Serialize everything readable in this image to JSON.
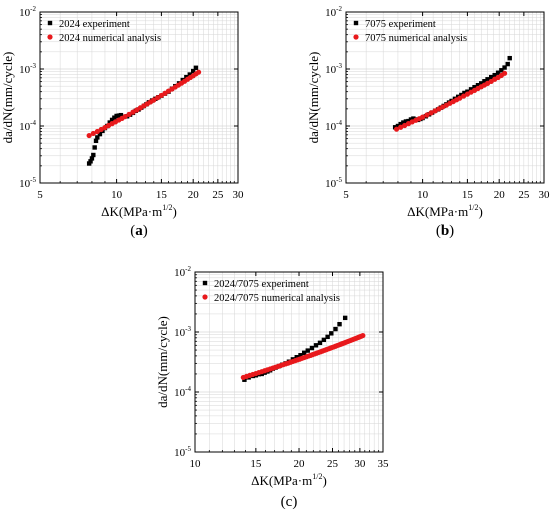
{
  "figure": {
    "panels": [
      {
        "panel_label_text": "(a)",
        "panel_label_letter": "a",
        "ylabel": "da/dN(mm/cycle)",
        "xlabel": "ΔK(MPa·m",
        "xlabel_sup": "1/2",
        "xlabel_close": ")",
        "legend": [
          "2024 experiment",
          "2024 numerical analysis"
        ]
      },
      {
        "panel_label_text": "(b)",
        "panel_label_letter": "b",
        "ylabel": "da/dN(mm/cycle)",
        "xlabel": "ΔK(MPa·m",
        "xlabel_sup": "1/2",
        "xlabel_close": ")",
        "legend": [
          "7075 experiment",
          "7075 numerical analysis"
        ]
      },
      {
        "panel_label_text": "(c)",
        "panel_label_letter": "",
        "ylabel": "da/dN(mm/cycle)",
        "xlabel": "ΔK(MPa·m",
        "xlabel_sup": "1/2",
        "xlabel_close": ")",
        "legend": [
          "2024/7075 experiment",
          "2024/7075 numerical analysis"
        ]
      }
    ]
  },
  "colors": {
    "experiment": "#000000",
    "numerical": "#e8191c",
    "grid": "#d6d6d6"
  },
  "chart_data": [
    {
      "type": "scatter",
      "xscale": "log",
      "yscale": "log",
      "xlim": [
        5,
        30
      ],
      "ylim": [
        1e-05,
        0.01
      ],
      "xticks": [
        5,
        10,
        15,
        20,
        25,
        30
      ],
      "yticks": [
        1e-05,
        0.0001,
        0.001,
        0.01
      ],
      "ytick_labels": [
        {
          "base": "10",
          "exp": "-5"
        },
        {
          "base": "10",
          "exp": "-4"
        },
        {
          "base": "10",
          "exp": "-3"
        },
        {
          "base": "10",
          "exp": "-2"
        }
      ],
      "grid": true,
      "legend_position": "top-left",
      "series": [
        {
          "name": "2024 experiment",
          "marker": "square",
          "color": "#000000",
          "x": [
            7.8,
            7.9,
            8.0,
            8.1,
            8.2,
            8.3,
            8.4,
            8.6,
            8.8,
            9.0,
            9.2,
            9.4,
            9.6,
            9.8,
            10.0,
            10.2,
            10.4,
            10.7,
            11.0,
            11.3,
            11.6,
            11.9,
            12.2,
            12.5,
            12.8,
            13.1,
            13.4,
            13.8,
            14.2,
            14.6,
            15.0,
            15.5,
            16.0,
            16.5,
            17.0,
            17.6,
            18.2,
            18.8,
            19.4,
            20.0,
            20.5
          ],
          "y": [
            2.2e-05,
            2.4e-05,
            2.7e-05,
            3.1e-05,
            4.2e-05,
            5.5e-05,
            6.3e-05,
            7.2e-05,
            8.2e-05,
            9.2e-05,
            0.0001,
            0.000115,
            0.000128,
            0.00014,
            0.00015,
            0.000152,
            0.000155,
            0.000145,
            0.000148,
            0.000158,
            0.00017,
            0.000185,
            0.000195,
            0.00021,
            0.000225,
            0.00024,
            0.00026,
            0.00028,
            0.0003,
            0.00032,
            0.00034,
            0.00037,
            0.0004,
            0.00045,
            0.0005,
            0.00056,
            0.00064,
            0.00072,
            0.0008,
            0.00092,
            0.00105
          ]
        },
        {
          "name": "2024 numerical analysis",
          "marker": "circle",
          "color": "#e8191c",
          "x": [
            7.8,
            8.1,
            8.4,
            8.7,
            9.0,
            9.3,
            9.6,
            9.9,
            10.2,
            10.5,
            10.8,
            11.2,
            11.6,
            12.0,
            12.4,
            12.8,
            13.2,
            13.6,
            14.0,
            14.5,
            15.0,
            15.5,
            16.0,
            16.5,
            17.0,
            17.5,
            18.0,
            18.5,
            19.0,
            19.5,
            20.0,
            20.5,
            21.0
          ],
          "y": [
            6.8e-05,
            7.4e-05,
            8e-05,
            8.7e-05,
            9.4e-05,
            0.000102,
            0.00011,
            0.000118,
            0.000127,
            0.000136,
            0.000146,
            0.00016,
            0.000175,
            0.000191,
            0.000208,
            0.000226,
            0.000245,
            0.000265,
            0.000286,
            0.000314,
            0.000344,
            0.000375,
            0.00041,
            0.000445,
            0.000482,
            0.000522,
            0.000565,
            0.00061,
            0.00066,
            0.00071,
            0.00076,
            0.00082,
            0.00088
          ]
        }
      ]
    },
    {
      "type": "scatter",
      "xscale": "log",
      "yscale": "log",
      "xlim": [
        5,
        30
      ],
      "ylim": [
        1e-05,
        0.01
      ],
      "xticks": [
        5,
        10,
        15,
        20,
        25,
        30
      ],
      "yticks": [
        1e-05,
        0.0001,
        0.001,
        0.01
      ],
      "ytick_labels": [
        {
          "base": "10",
          "exp": "-5"
        },
        {
          "base": "10",
          "exp": "-4"
        },
        {
          "base": "10",
          "exp": "-3"
        },
        {
          "base": "10",
          "exp": "-2"
        }
      ],
      "grid": true,
      "legend_position": "top-left",
      "series": [
        {
          "name": "7075 experiment",
          "marker": "square",
          "color": "#000000",
          "x": [
            7.8,
            8.0,
            8.2,
            8.4,
            8.6,
            8.8,
            9.0,
            9.2,
            9.4,
            9.6,
            9.8,
            10.0,
            10.3,
            10.6,
            10.9,
            11.2,
            11.5,
            11.8,
            12.1,
            12.4,
            12.7,
            13.0,
            13.4,
            13.8,
            14.2,
            14.6,
            15.0,
            15.5,
            16.0,
            16.5,
            17.0,
            17.5,
            18.0,
            18.6,
            19.2,
            19.8,
            20.4,
            21.0,
            21.6,
            22.0
          ],
          "y": [
            9.5e-05,
            0.0001,
            0.000108,
            0.000115,
            0.00012,
            0.000122,
            0.00013,
            0.000135,
            0.00013,
            0.000128,
            0.000133,
            0.000138,
            0.000148,
            0.00016,
            0.000172,
            0.000185,
            0.000195,
            0.00021,
            0.000225,
            0.00024,
            0.000258,
            0.000275,
            0.0003,
            0.000325,
            0.00035,
            0.00038,
            0.0004,
            0.00044,
            0.00048,
            0.00052,
            0.00056,
            0.00061,
            0.00066,
            0.00072,
            0.00078,
            0.00086,
            0.00095,
            0.00106,
            0.00122,
            0.00155
          ]
        },
        {
          "name": "7075 numerical analysis",
          "marker": "circle",
          "color": "#e8191c",
          "x": [
            7.9,
            8.2,
            8.5,
            8.8,
            9.1,
            9.4,
            9.7,
            10.0,
            10.4,
            10.8,
            11.2,
            11.6,
            12.0,
            12.4,
            12.8,
            13.2,
            13.6,
            14.0,
            14.5,
            15.0,
            15.5,
            16.0,
            16.5,
            17.0,
            17.5,
            18.0,
            18.6,
            19.2,
            19.8,
            20.4,
            21.0
          ],
          "y": [
            8.8e-05,
            9.5e-05,
            0.000102,
            0.00011,
            0.000118,
            0.000126,
            0.000134,
            0.000143,
            0.000156,
            0.00017,
            0.000184,
            0.0002,
            0.000216,
            0.000232,
            0.00025,
            0.000268,
            0.000288,
            0.000308,
            0.000335,
            0.000362,
            0.000392,
            0.000422,
            0.000455,
            0.000488,
            0.000522,
            0.00056,
            0.000605,
            0.00066,
            0.00071,
            0.00077,
            0.00084
          ]
        }
      ]
    },
    {
      "type": "scatter",
      "xscale": "log",
      "yscale": "log",
      "xlim": [
        10,
        35
      ],
      "ylim": [
        1e-05,
        0.01
      ],
      "xticks": [
        10,
        15,
        20,
        25,
        30,
        35
      ],
      "yticks": [
        1e-05,
        0.0001,
        0.001,
        0.01
      ],
      "ytick_labels": [
        {
          "base": "10",
          "exp": "-5"
        },
        {
          "base": "10",
          "exp": "-4"
        },
        {
          "base": "10",
          "exp": "-3"
        },
        {
          "base": "10",
          "exp": "-2"
        }
      ],
      "grid": true,
      "legend_position": "top-left",
      "series": [
        {
          "name": "2024/7075 experiment",
          "marker": "square",
          "color": "#000000",
          "x": [
            13.9,
            14.3,
            14.7,
            15.0,
            15.3,
            15.6,
            15.9,
            16.2,
            16.5,
            16.8,
            17.1,
            17.5,
            17.9,
            18.3,
            18.7,
            19.2,
            19.7,
            20.2,
            20.7,
            21.2,
            21.8,
            22.4,
            23.0,
            23.6,
            24.2,
            24.8,
            25.5,
            26.2,
            27.2
          ],
          "y": [
            0.00016,
            0.000175,
            0.000185,
            0.00019,
            0.000198,
            0.0002,
            0.00021,
            0.00022,
            0.00023,
            0.000245,
            0.000255,
            0.00027,
            0.000285,
            0.0003,
            0.00032,
            0.00035,
            0.00038,
            0.00041,
            0.00045,
            0.00049,
            0.00054,
            0.0006,
            0.00066,
            0.00074,
            0.00083,
            0.00095,
            0.00112,
            0.00135,
            0.00172
          ]
        },
        {
          "name": "2024/7075 numerical analysis",
          "marker": "circle",
          "color": "#e8191c",
          "x": [
            13.8,
            14.1,
            14.4,
            14.7,
            15.0,
            15.3,
            15.6,
            15.9,
            16.2,
            16.5,
            16.8,
            17.1,
            17.4,
            17.7,
            18.0,
            18.3,
            18.6,
            18.9,
            19.2,
            19.5,
            19.8,
            20.1,
            20.4,
            20.7,
            21.0,
            21.3,
            21.6,
            21.9,
            22.2,
            22.5,
            22.8,
            23.1,
            23.4,
            23.7,
            24.0,
            24.3,
            24.6,
            24.9,
            25.2,
            25.5,
            25.8,
            26.1,
            26.4,
            26.7,
            27.0,
            27.3,
            27.6,
            27.9,
            28.2,
            28.5,
            28.8,
            29.1,
            29.4,
            29.7,
            30.0,
            30.3,
            30.6
          ],
          "y": [
            0.000175,
            0.000182,
            0.000189,
            0.000196,
            0.000203,
            0.000211,
            0.000218,
            0.000226,
            0.000234,
            0.000242,
            0.00025,
            0.000259,
            0.000267,
            0.000276,
            0.000285,
            0.000294,
            0.000303,
            0.000313,
            0.000323,
            0.000333,
            0.000343,
            0.000353,
            0.000364,
            0.000375,
            0.000386,
            0.000397,
            0.000408,
            0.00042,
            0.000432,
            0.000444,
            0.000456,
            0.000469,
            0.000482,
            0.000495,
            0.000508,
            0.000522,
            0.000536,
            0.00055,
            0.000564,
            0.000579,
            0.000594,
            0.000609,
            0.000625,
            0.00064,
            0.000656,
            0.000673,
            0.000689,
            0.000706,
            0.000723,
            0.000741,
            0.000759,
            0.000777,
            0.000795,
            0.000814,
            0.000833,
            0.000852,
            0.000872
          ]
        }
      ]
    }
  ]
}
